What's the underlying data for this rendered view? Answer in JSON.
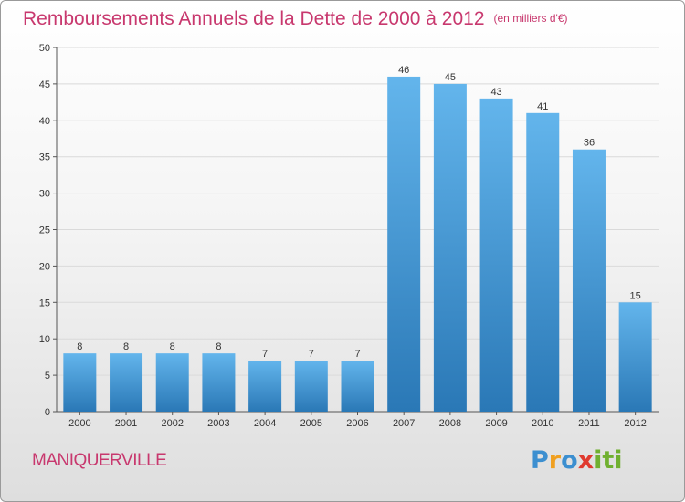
{
  "title": "Remboursements Annuels de la Dette de 2000 à 2012",
  "subtitle": "(en milliers d'€)",
  "town": "MANIQUERVILLE",
  "brand": {
    "letters": [
      "P",
      "r",
      "o",
      "x",
      "i",
      "t",
      "i"
    ],
    "colors": [
      "#3c8fd0",
      "#f0a020",
      "#3c8fd0",
      "#e03a2f",
      "#70b030",
      "#70b030",
      "#70b030"
    ]
  },
  "colors": {
    "title": "#c8386e",
    "bar_top": "#63b5ec",
    "bar_bottom": "#2a78b6",
    "grid": "#dadada"
  },
  "chart_data": {
    "type": "bar",
    "title": "Remboursements Annuels de la Dette de 2000 à 2012",
    "categories": [
      "2000",
      "2001",
      "2002",
      "2003",
      "2004",
      "2005",
      "2006",
      "2007",
      "2008",
      "2009",
      "2010",
      "2011",
      "2012"
    ],
    "values": [
      8,
      8,
      8,
      8,
      7,
      7,
      7,
      46,
      45,
      43,
      41,
      36,
      15
    ],
    "ylim": [
      0,
      50
    ],
    "yticks": [
      0,
      5,
      10,
      15,
      20,
      25,
      30,
      35,
      40,
      45,
      50
    ],
    "grid": true,
    "xlabel": "",
    "ylabel": ""
  }
}
